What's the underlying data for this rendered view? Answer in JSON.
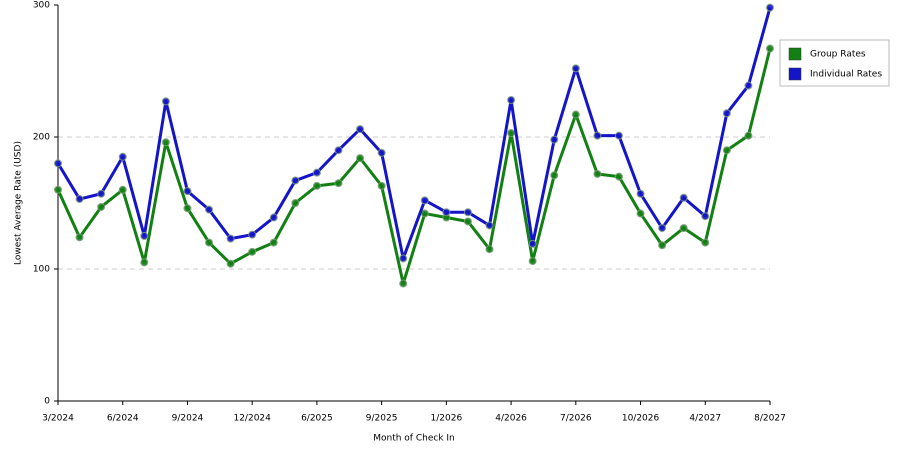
{
  "chart_data": {
    "type": "line",
    "x_label": "Month of Check In",
    "y_label": "Lowest Average Rate (USD)",
    "categories": [
      "3/2024",
      null,
      null,
      "6/2024",
      null,
      null,
      "9/2024",
      null,
      null,
      "12/2024",
      null,
      null,
      "6/2025",
      null,
      null,
      "9/2025",
      null,
      null,
      "1/2026",
      null,
      null,
      "4/2026",
      null,
      null,
      "7/2026",
      null,
      null,
      "10/2026",
      null,
      null,
      "4/2027",
      null,
      null,
      "8/2027"
    ],
    "series": [
      {
        "name": "Group Rates",
        "color": "#128012",
        "values": [
          160,
          124,
          147,
          160,
          105,
          196,
          146,
          120,
          104,
          113,
          120,
          150,
          163,
          165,
          184,
          163,
          89,
          142,
          139,
          136,
          115,
          203,
          106,
          171,
          217,
          172,
          170,
          142,
          118,
          131,
          120,
          190,
          201,
          267
        ]
      },
      {
        "name": "Individual Rates",
        "color": "#1414c8",
        "values": [
          180,
          153,
          157,
          185,
          125,
          227,
          159,
          145,
          123,
          126,
          139,
          167,
          173,
          190,
          206,
          188,
          108,
          152,
          143,
          143,
          133,
          228,
          119,
          198,
          252,
          201,
          201,
          157,
          131,
          154,
          140,
          218,
          239,
          298
        ]
      }
    ],
    "ylim": [
      0,
      300
    ],
    "yticks": [
      0,
      100,
      200,
      300
    ],
    "grid": true
  }
}
